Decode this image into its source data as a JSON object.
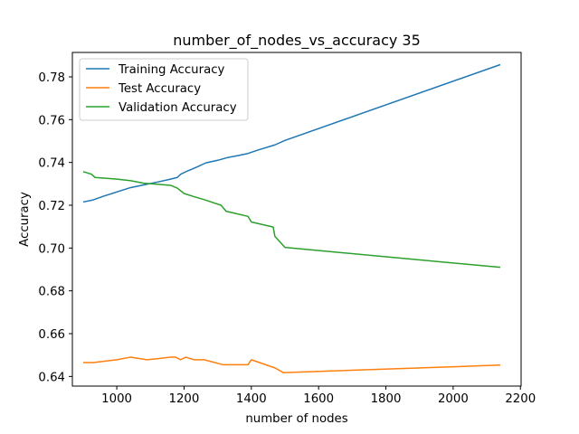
{
  "chart_data": {
    "type": "line",
    "title": "number_of_nodes_vs_accuracy 35",
    "xlabel": "number of nodes",
    "ylabel": "Accuracy",
    "xlim": [
      868,
      2202
    ],
    "ylim": [
      0.6355,
      0.7914
    ],
    "xticks": [
      1000,
      1200,
      1400,
      1600,
      1800,
      2000,
      2200
    ],
    "yticks": [
      0.64,
      0.66,
      0.68,
      0.7,
      0.72,
      0.74,
      0.76,
      0.78
    ],
    "ytick_labels": [
      "0.64",
      "0.66",
      "0.68",
      "0.70",
      "0.72",
      "0.74",
      "0.76",
      "0.78"
    ],
    "grid": false,
    "legend": {
      "placement": "top-left"
    },
    "series": [
      {
        "name": "Training Accuracy",
        "color": "#1f77b4",
        "points": [
          [
            900,
            0.7215
          ],
          [
            930,
            0.7225
          ],
          [
            960,
            0.7242
          ],
          [
            1000,
            0.7262
          ],
          [
            1040,
            0.7282
          ],
          [
            1080,
            0.7295
          ],
          [
            1120,
            0.7308
          ],
          [
            1160,
            0.7322
          ],
          [
            1180,
            0.733
          ],
          [
            1190,
            0.7345
          ],
          [
            1210,
            0.736
          ],
          [
            1240,
            0.738
          ],
          [
            1265,
            0.7398
          ],
          [
            1300,
            0.741
          ],
          [
            1330,
            0.7423
          ],
          [
            1360,
            0.7432
          ],
          [
            1390,
            0.7442
          ],
          [
            1420,
            0.7458
          ],
          [
            1470,
            0.7482
          ],
          [
            1500,
            0.7503
          ],
          [
            2140,
            0.7857
          ]
        ]
      },
      {
        "name": "Test Accuracy",
        "color": "#ff7f0e",
        "points": [
          [
            900,
            0.6465
          ],
          [
            930,
            0.6465
          ],
          [
            1000,
            0.6478
          ],
          [
            1040,
            0.649
          ],
          [
            1090,
            0.6478
          ],
          [
            1120,
            0.6483
          ],
          [
            1160,
            0.649
          ],
          [
            1175,
            0.649
          ],
          [
            1190,
            0.6478
          ],
          [
            1205,
            0.649
          ],
          [
            1230,
            0.6478
          ],
          [
            1260,
            0.6478
          ],
          [
            1315,
            0.6455
          ],
          [
            1345,
            0.6455
          ],
          [
            1390,
            0.6455
          ],
          [
            1400,
            0.6478
          ],
          [
            1470,
            0.644
          ],
          [
            1495,
            0.6418
          ],
          [
            2140,
            0.6453
          ]
        ]
      },
      {
        "name": "Validation Accuracy",
        "color": "#2ca02c",
        "points": [
          [
            900,
            0.7357
          ],
          [
            925,
            0.7345
          ],
          [
            935,
            0.733
          ],
          [
            1000,
            0.7322
          ],
          [
            1040,
            0.7315
          ],
          [
            1080,
            0.7303
          ],
          [
            1120,
            0.7298
          ],
          [
            1160,
            0.7293
          ],
          [
            1180,
            0.728
          ],
          [
            1200,
            0.7255
          ],
          [
            1230,
            0.724
          ],
          [
            1260,
            0.7226
          ],
          [
            1310,
            0.72
          ],
          [
            1325,
            0.7172
          ],
          [
            1390,
            0.7148
          ],
          [
            1400,
            0.7122
          ],
          [
            1465,
            0.7098
          ],
          [
            1470,
            0.7055
          ],
          [
            1500,
            0.7003
          ],
          [
            2140,
            0.691
          ]
        ]
      }
    ]
  }
}
